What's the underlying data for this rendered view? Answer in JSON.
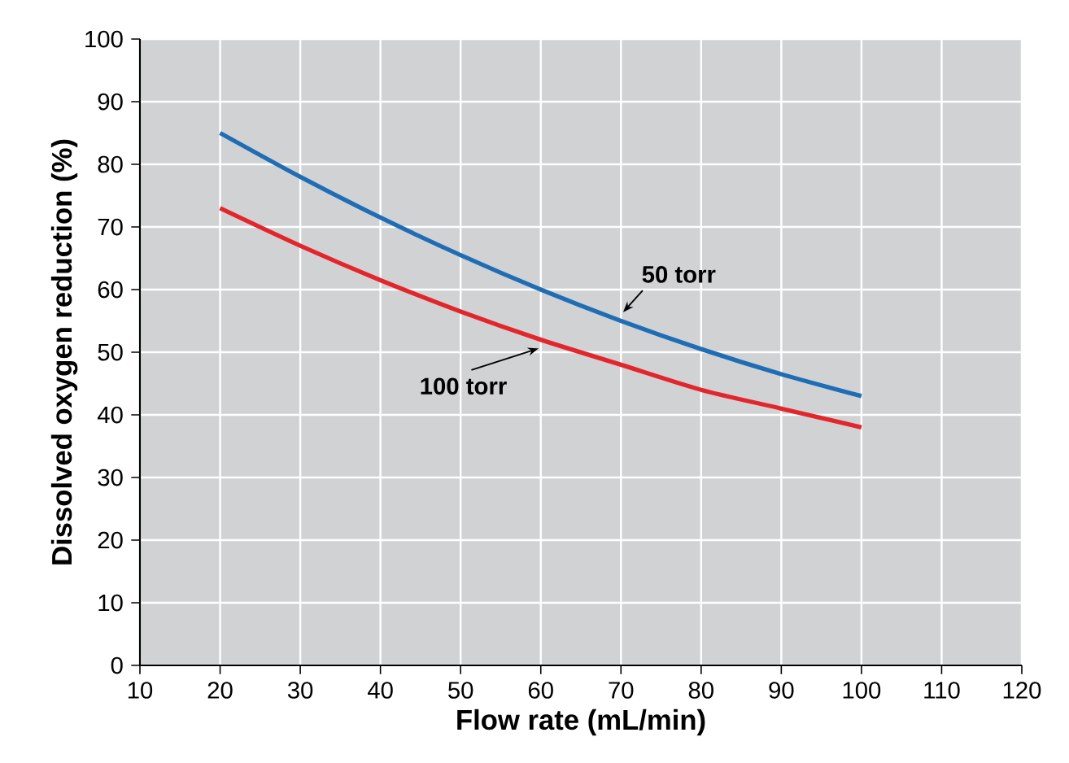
{
  "chart_data": {
    "type": "line",
    "xlabel": "Flow rate (mL/min)",
    "ylabel": "Dissolved oxygen reduction (%)",
    "xlim": [
      10,
      120
    ],
    "ylim": [
      0,
      100
    ],
    "xticks": [
      10,
      20,
      30,
      40,
      50,
      60,
      70,
      80,
      90,
      100,
      110,
      120
    ],
    "yticks": [
      0,
      10,
      20,
      30,
      40,
      50,
      60,
      70,
      80,
      90,
      100
    ],
    "grid": true,
    "x": [
      20,
      30,
      40,
      50,
      60,
      70,
      80,
      90,
      100
    ],
    "series": [
      {
        "name": "50 torr",
        "color": "#1f6db4",
        "values": [
          85,
          78,
          71.5,
          65.5,
          60,
          55,
          50.5,
          46.5,
          43
        ]
      },
      {
        "name": "100 torr",
        "color": "#e2262c",
        "values": [
          73,
          67,
          61.5,
          56.5,
          52,
          48,
          44,
          41,
          38
        ]
      }
    ]
  }
}
